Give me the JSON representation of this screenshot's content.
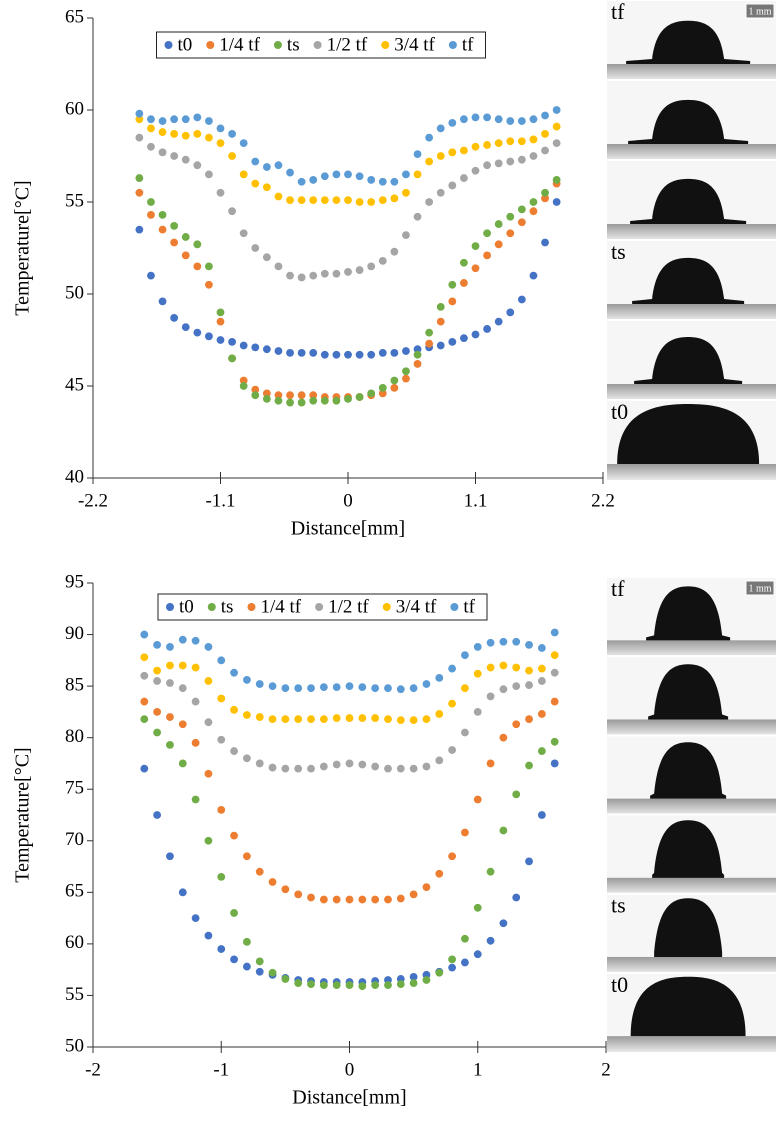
{
  "chart_data": [
    {
      "type": "scatter",
      "xlabel": "Distance[mm]",
      "ylabel": "Temperature[°C]",
      "xlim": [
        -2.2,
        2.2
      ],
      "xticks": [
        -2.2,
        -1.1,
        0,
        1.1,
        2.2
      ],
      "ylim": [
        40,
        65
      ],
      "yticks": [
        40,
        45,
        50,
        55,
        60,
        65
      ],
      "legend": "top",
      "x": [
        -1.8,
        -1.7,
        -1.6,
        -1.5,
        -1.4,
        -1.3,
        -1.2,
        -1.1,
        -1.0,
        -0.9,
        -0.8,
        -0.7,
        -0.6,
        -0.5,
        -0.4,
        -0.3,
        -0.2,
        -0.1,
        0,
        0.1,
        0.2,
        0.3,
        0.4,
        0.5,
        0.6,
        0.7,
        0.8,
        0.9,
        1.0,
        1.1,
        1.2,
        1.3,
        1.4,
        1.5,
        1.6,
        1.7,
        1.8
      ],
      "series": [
        {
          "name": "t0",
          "color": "#4472c4",
          "values": [
            53.5,
            51,
            49.6,
            48.7,
            48.2,
            47.9,
            47.7,
            47.5,
            47.4,
            47.2,
            47.1,
            47.0,
            46.9,
            46.8,
            46.8,
            46.8,
            46.7,
            46.7,
            46.7,
            46.7,
            46.7,
            46.8,
            46.8,
            46.9,
            47.0,
            47.1,
            47.2,
            47.4,
            47.6,
            47.8,
            48.1,
            48.5,
            49.0,
            49.7,
            51,
            52.8,
            55
          ]
        },
        {
          "name": "1/4 tf",
          "color": "#ed7d31",
          "values": [
            55.5,
            54.3,
            53.5,
            52.8,
            52.1,
            51.5,
            50.5,
            48.5,
            46.5,
            45.3,
            44.8,
            44.6,
            44.5,
            44.5,
            44.5,
            44.5,
            44.4,
            44.4,
            44.4,
            44.4,
            44.5,
            44.6,
            44.9,
            45.4,
            46.2,
            47.3,
            48.5,
            49.6,
            50.6,
            51.4,
            52.1,
            52.7,
            53.3,
            53.9,
            54.5,
            55.2,
            56
          ]
        },
        {
          "name": "ts",
          "color": "#70ad47",
          "values": [
            56.3,
            55,
            54.3,
            53.7,
            53.1,
            52.7,
            51.5,
            49,
            46.5,
            45,
            44.5,
            44.3,
            44.2,
            44.1,
            44.1,
            44.2,
            44.2,
            44.2,
            44.3,
            44.4,
            44.6,
            44.9,
            45.3,
            45.8,
            46.7,
            47.9,
            49.3,
            50.5,
            51.7,
            52.6,
            53.3,
            53.8,
            54.2,
            54.6,
            55.0,
            55.5,
            56.2
          ]
        },
        {
          "name": "1/2 tf",
          "color": "#a5a5a5",
          "values": [
            58.5,
            58,
            57.7,
            57.5,
            57.3,
            57,
            56.5,
            55.5,
            54.5,
            53.3,
            52.5,
            52,
            51.5,
            51,
            50.9,
            51,
            51.1,
            51.1,
            51.2,
            51.3,
            51.5,
            51.8,
            52.3,
            53.2,
            54.2,
            55,
            55.5,
            55.9,
            56.3,
            56.7,
            57,
            57.1,
            57.2,
            57.3,
            57.5,
            57.8,
            58.2
          ]
        },
        {
          "name": "3/4 tf",
          "color": "#ffc000",
          "values": [
            59.5,
            59,
            58.8,
            58.7,
            58.6,
            58.7,
            58.5,
            58.2,
            57.5,
            56.5,
            56,
            55.8,
            55.3,
            55.1,
            55.1,
            55.1,
            55.1,
            55.1,
            55.1,
            55,
            55,
            55.1,
            55.2,
            55.5,
            56.5,
            57.2,
            57.5,
            57.7,
            57.8,
            58,
            58.1,
            58.2,
            58.3,
            58.3,
            58.4,
            58.7,
            59.1
          ]
        },
        {
          "name": "tf",
          "color": "#5b9bd5",
          "values": [
            59.8,
            59.5,
            59.4,
            59.5,
            59.5,
            59.6,
            59.4,
            59,
            58.7,
            58.2,
            57.2,
            56.9,
            57,
            56.6,
            56.1,
            56.2,
            56.4,
            56.5,
            56.5,
            56.4,
            56.2,
            56.1,
            56.1,
            56.5,
            57.6,
            58.5,
            59,
            59.3,
            59.5,
            59.6,
            59.6,
            59.5,
            59.4,
            59.4,
            59.5,
            59.7,
            60
          ]
        }
      ]
    },
    {
      "type": "scatter",
      "xlabel": "Distance[mm]",
      "ylabel": "Temperature[°C]",
      "xlim": [
        -2,
        2
      ],
      "xticks": [
        -2,
        -1,
        0,
        1,
        2
      ],
      "ylim": [
        50,
        95
      ],
      "yticks": [
        50,
        55,
        60,
        65,
        70,
        75,
        80,
        85,
        90,
        95
      ],
      "legend": "top",
      "x": [
        -1.6,
        -1.5,
        -1.4,
        -1.3,
        -1.2,
        -1.1,
        -1.0,
        -0.9,
        -0.8,
        -0.7,
        -0.6,
        -0.5,
        -0.4,
        -0.3,
        -0.2,
        -0.1,
        0,
        0.1,
        0.2,
        0.3,
        0.4,
        0.5,
        0.6,
        0.7,
        0.8,
        0.9,
        1.0,
        1.1,
        1.2,
        1.3,
        1.4,
        1.5,
        1.6
      ],
      "series": [
        {
          "name": "t0",
          "color": "#4472c4",
          "values": [
            77,
            72.5,
            68.5,
            65,
            62.5,
            60.8,
            59.5,
            58.5,
            57.8,
            57.3,
            57,
            56.7,
            56.5,
            56.4,
            56.3,
            56.3,
            56.3,
            56.3,
            56.4,
            56.5,
            56.6,
            56.8,
            57,
            57.3,
            57.7,
            58.2,
            59,
            60.3,
            62,
            64.5,
            68,
            72.5,
            77.5
          ]
        },
        {
          "name": "ts",
          "color": "#70ad47",
          "values": [
            81.8,
            80.5,
            79.3,
            77.5,
            74,
            70,
            66.5,
            63,
            60.2,
            58.3,
            57.2,
            56.6,
            56.2,
            56.1,
            56,
            56,
            56,
            55.9,
            56,
            56,
            56.1,
            56.2,
            56.5,
            57.2,
            58.5,
            60.5,
            63.5,
            67,
            71,
            74.5,
            77.3,
            78.7,
            79.6
          ]
        },
        {
          "name": "1/4 tf",
          "color": "#ed7d31",
          "values": [
            83.5,
            82.5,
            82,
            81.3,
            79.5,
            76.5,
            73,
            70.5,
            68.5,
            67,
            66,
            65.3,
            64.8,
            64.5,
            64.3,
            64.3,
            64.3,
            64.3,
            64.3,
            64.3,
            64.4,
            64.8,
            65.5,
            66.8,
            68.5,
            70.8,
            74,
            77.5,
            80,
            81.3,
            81.8,
            82.3,
            83.5
          ]
        },
        {
          "name": "1/2 tf",
          "color": "#a5a5a5",
          "values": [
            86,
            85.5,
            85.3,
            84.8,
            83.5,
            81.5,
            79.8,
            78.7,
            78,
            77.5,
            77.1,
            77,
            77,
            77,
            77.2,
            77.4,
            77.5,
            77.4,
            77.2,
            77,
            77,
            77,
            77.2,
            77.8,
            78.8,
            80.5,
            82.5,
            84,
            84.7,
            85,
            85.1,
            85.5,
            86.3
          ]
        },
        {
          "name": "3/4 tf",
          "color": "#ffc000",
          "values": [
            87.8,
            86.5,
            87,
            87,
            86.8,
            85.5,
            83.8,
            82.7,
            82.2,
            82,
            81.8,
            81.8,
            81.8,
            81.8,
            81.8,
            81.9,
            81.9,
            81.9,
            81.9,
            81.8,
            81.7,
            81.7,
            81.8,
            82.3,
            83.3,
            84.8,
            86.2,
            86.8,
            87,
            86.8,
            86.5,
            86.7,
            88
          ]
        },
        {
          "name": "tf",
          "color": "#5b9bd5",
          "values": [
            90,
            89,
            88.8,
            89.5,
            89.4,
            88.8,
            87.5,
            86.3,
            85.6,
            85.2,
            85,
            84.8,
            84.8,
            84.8,
            84.9,
            84.9,
            85,
            84.9,
            84.8,
            84.8,
            84.7,
            84.8,
            85.2,
            85.8,
            86.7,
            88,
            88.8,
            89.2,
            89.3,
            89.3,
            89,
            88.7,
            90.2
          ]
        }
      ]
    }
  ],
  "droplet_images": [
    {
      "scale_bar": "1 mm",
      "frame_labels": [
        "tf",
        null,
        null,
        "ts",
        null,
        "t0"
      ]
    },
    {
      "scale_bar": "1 mm",
      "frame_labels": [
        "tf",
        null,
        null,
        null,
        "ts",
        "t0"
      ]
    }
  ]
}
